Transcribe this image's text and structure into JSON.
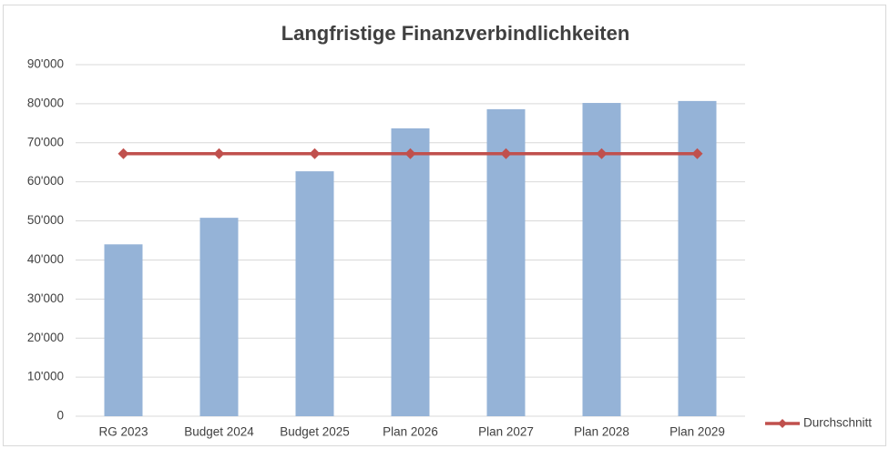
{
  "chart_data": {
    "type": "bar",
    "title": "Langfristige Finanzverbindlichkeiten",
    "categories": [
      "RG 2023",
      "Budget 2024",
      "Budget 2025",
      "Plan 2026",
      "Plan 2027",
      "Plan 2028",
      "Plan 2029"
    ],
    "series": [
      {
        "type": "bar",
        "color": "#95b3d7",
        "values": [
          44000,
          50800,
          62700,
          73700,
          78600,
          80200,
          80700
        ]
      },
      {
        "type": "line",
        "name": "Durchschnitt",
        "color": "#c0504d",
        "values": [
          67200,
          67200,
          67200,
          67200,
          67200,
          67200,
          67200
        ]
      }
    ],
    "ylim": [
      0,
      90000
    ],
    "yticks": [
      0,
      {
        "value": 10000,
        "label": "10'000"
      },
      {
        "value": 20000,
        "label": "20'000"
      },
      {
        "value": 30000,
        "label": "30'000"
      },
      {
        "value": 40000,
        "label": "40'000"
      },
      {
        "value": 50000,
        "label": "50'000"
      },
      {
        "value": 60000,
        "label": "60'000"
      },
      {
        "value": 70000,
        "label": "70'000"
      },
      {
        "value": 80000,
        "label": "80'000"
      },
      {
        "value": 90000,
        "label": "90'000"
      }
    ],
    "grid": true,
    "legend": "right"
  }
}
